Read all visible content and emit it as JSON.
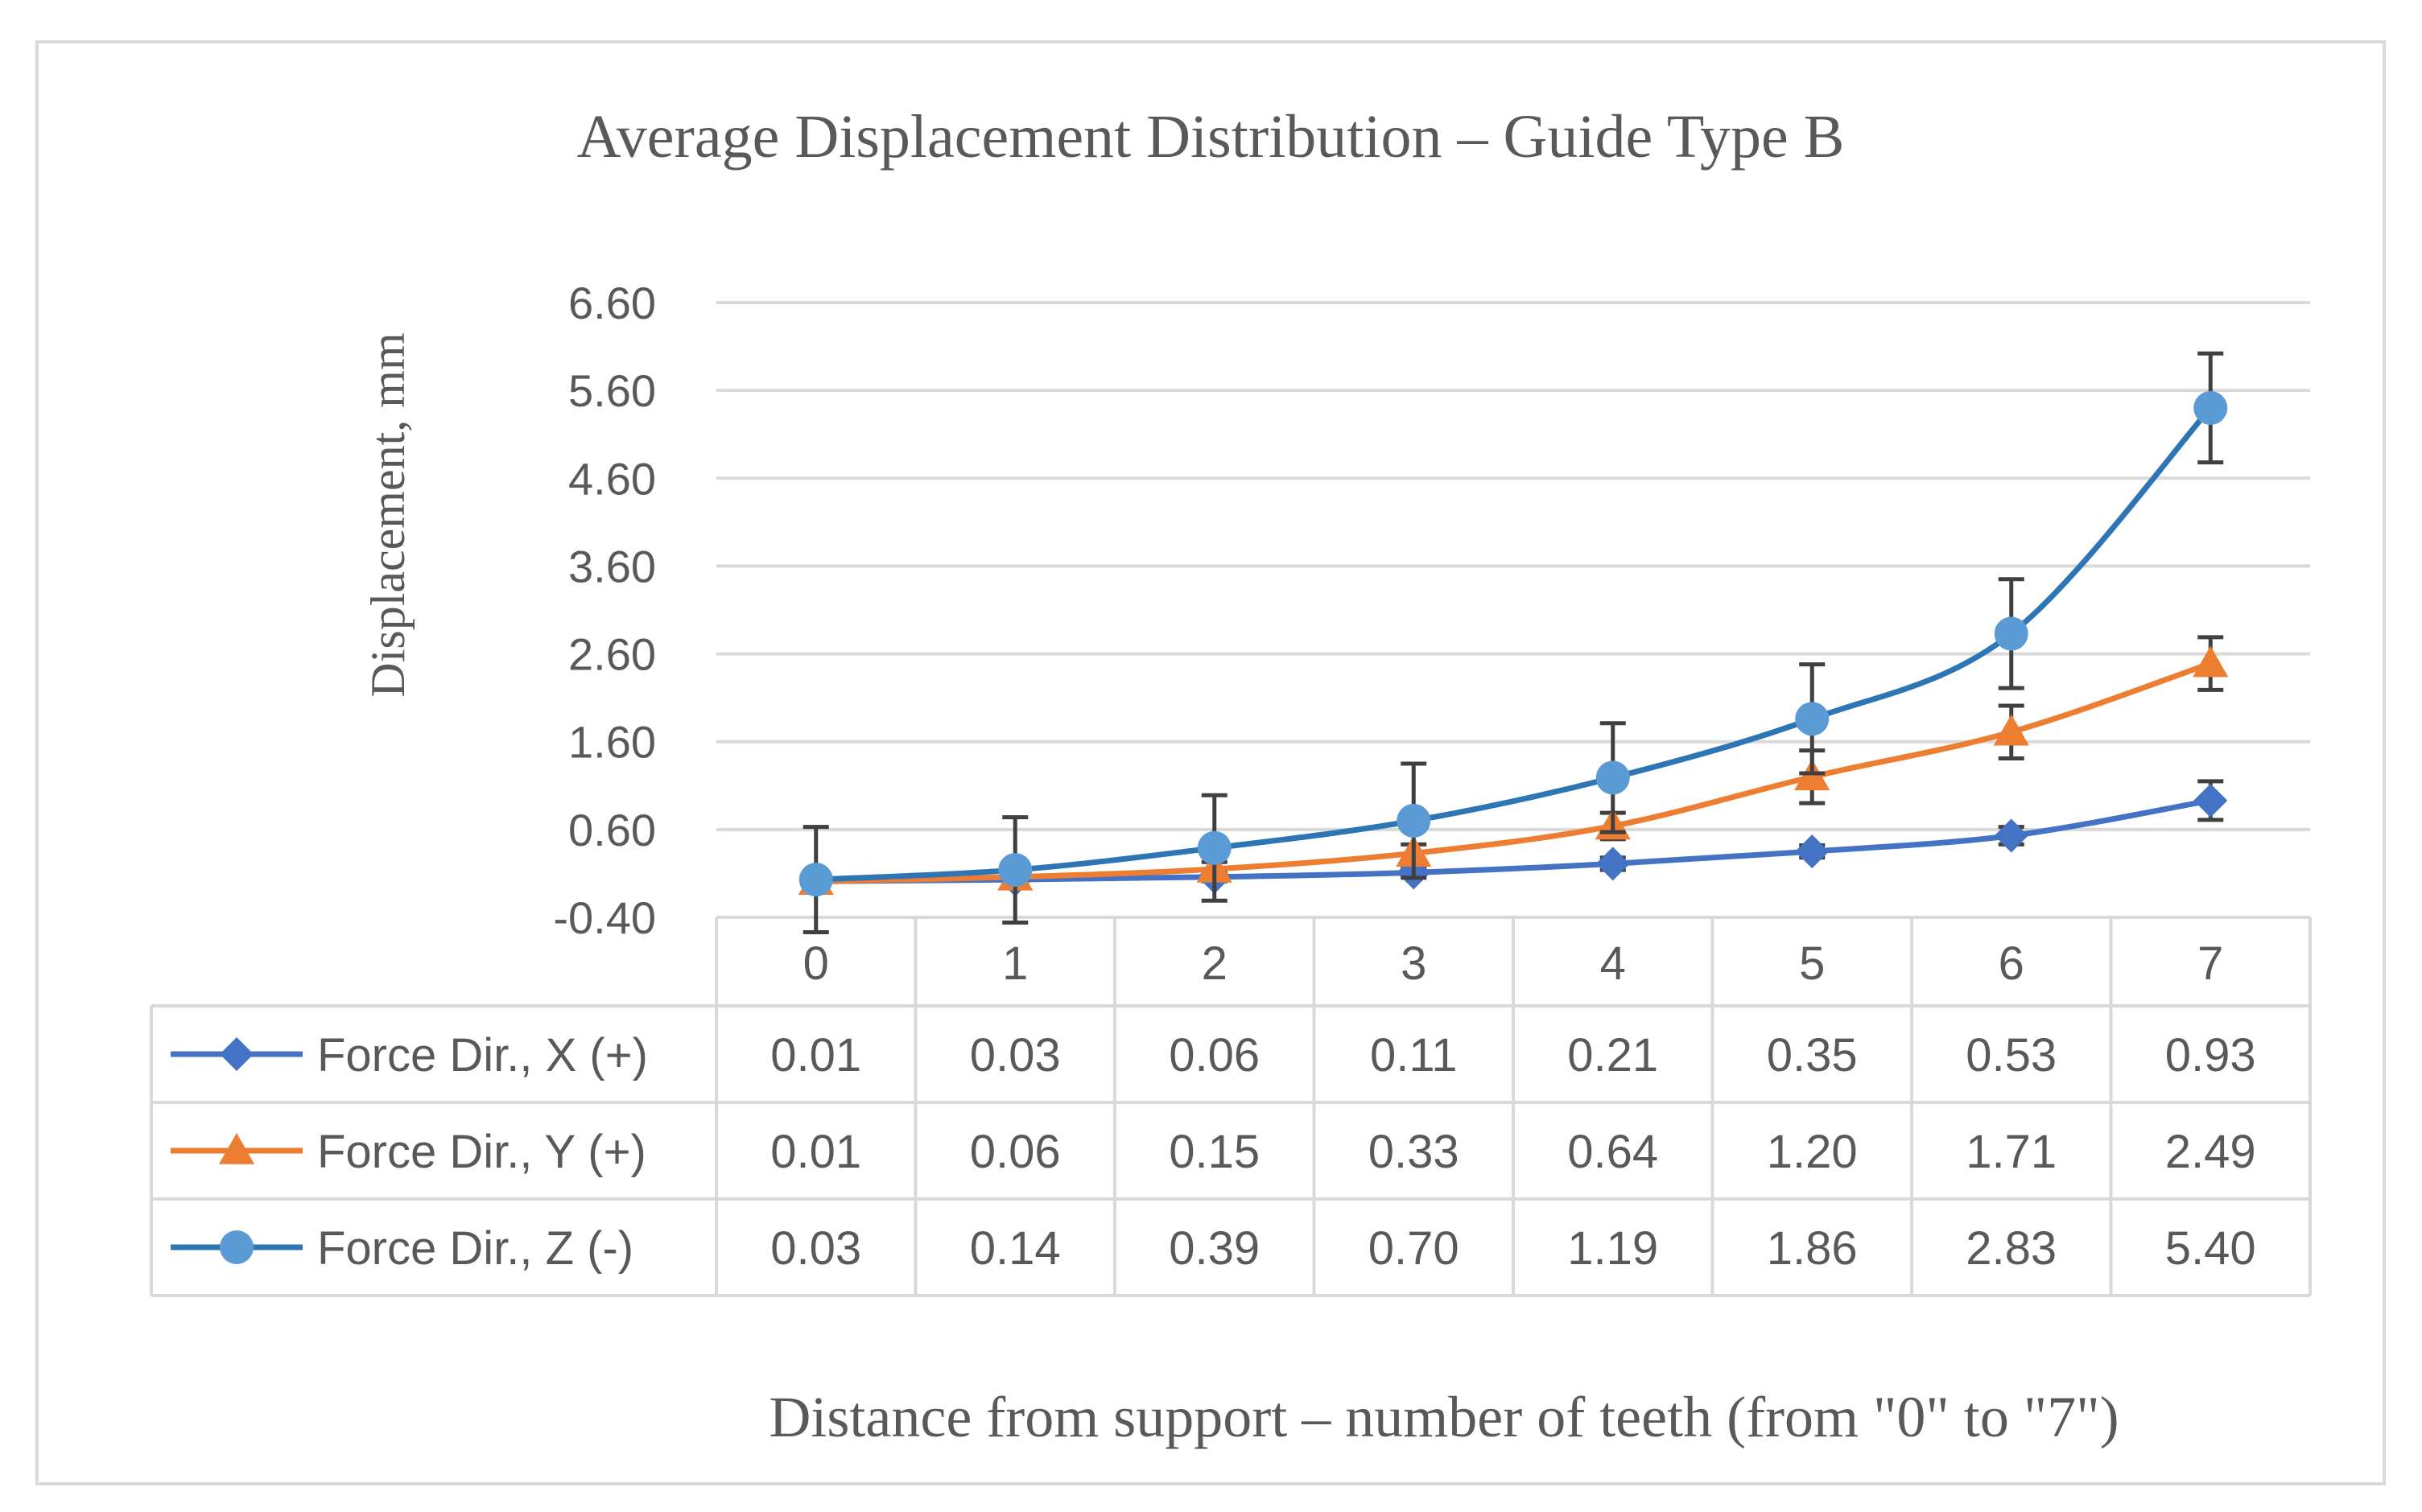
{
  "chart_data": {
    "type": "line",
    "title": "Average Displacement Distribution – Guide Type B",
    "xlabel": "Distance from support – number of teeth (from \"0\" to \"7\")",
    "ylabel": "Displacement, mm",
    "ylim": [
      -0.4,
      6.6
    ],
    "yticks": [
      "6.60",
      "5.60",
      "4.60",
      "3.60",
      "2.60",
      "1.60",
      "0.60",
      "-0.40"
    ],
    "ytick_values": [
      6.6,
      5.6,
      4.6,
      3.6,
      2.6,
      1.6,
      0.6,
      -0.4
    ],
    "categories": [
      "0",
      "1",
      "2",
      "3",
      "4",
      "5",
      "6",
      "7"
    ],
    "grid": true,
    "legend": "data-table",
    "series": [
      {
        "name": "Force Dir., X (+)",
        "color": "#4472C4",
        "marker": "diamond",
        "values": [
          0.01,
          0.03,
          0.06,
          0.11,
          0.21,
          0.35,
          0.53,
          0.93
        ],
        "labels": [
          "0.01",
          "0.03",
          "0.06",
          "0.11",
          "0.21",
          "0.35",
          "0.53",
          "0.93"
        ],
        "error": [
          0.02,
          0.03,
          0.05,
          0.05,
          0.07,
          0.07,
          0.1,
          0.22
        ]
      },
      {
        "name": "Force Dir., Y (+)",
        "color": "#ED7D31",
        "marker": "triangle",
        "values": [
          0.01,
          0.06,
          0.15,
          0.33,
          0.64,
          1.2,
          1.71,
          2.49
        ],
        "labels": [
          "0.01",
          "0.06",
          "0.15",
          "0.33",
          "0.64",
          "1.20",
          "1.71",
          "2.49"
        ],
        "error": [
          0.05,
          0.06,
          0.08,
          0.1,
          0.15,
          0.3,
          0.3,
          0.3
        ]
      },
      {
        "name": "Force Dir., Z (-)",
        "color": "#5B9BD5",
        "line_color": "#2E75B6",
        "marker": "circle",
        "values": [
          0.03,
          0.14,
          0.39,
          0.7,
          1.19,
          1.86,
          2.83,
          5.4
        ],
        "labels": [
          "0.03",
          "0.14",
          "0.39",
          "0.70",
          "1.19",
          "1.86",
          "2.83",
          "5.40"
        ],
        "error": [
          0.6,
          0.6,
          0.6,
          0.65,
          0.62,
          0.62,
          0.62,
          0.62
        ]
      }
    ]
  },
  "colors": {
    "grid": "#D9D9D9",
    "text": "#595959",
    "error_bar": "#404040",
    "border": "#D9D9D9"
  }
}
